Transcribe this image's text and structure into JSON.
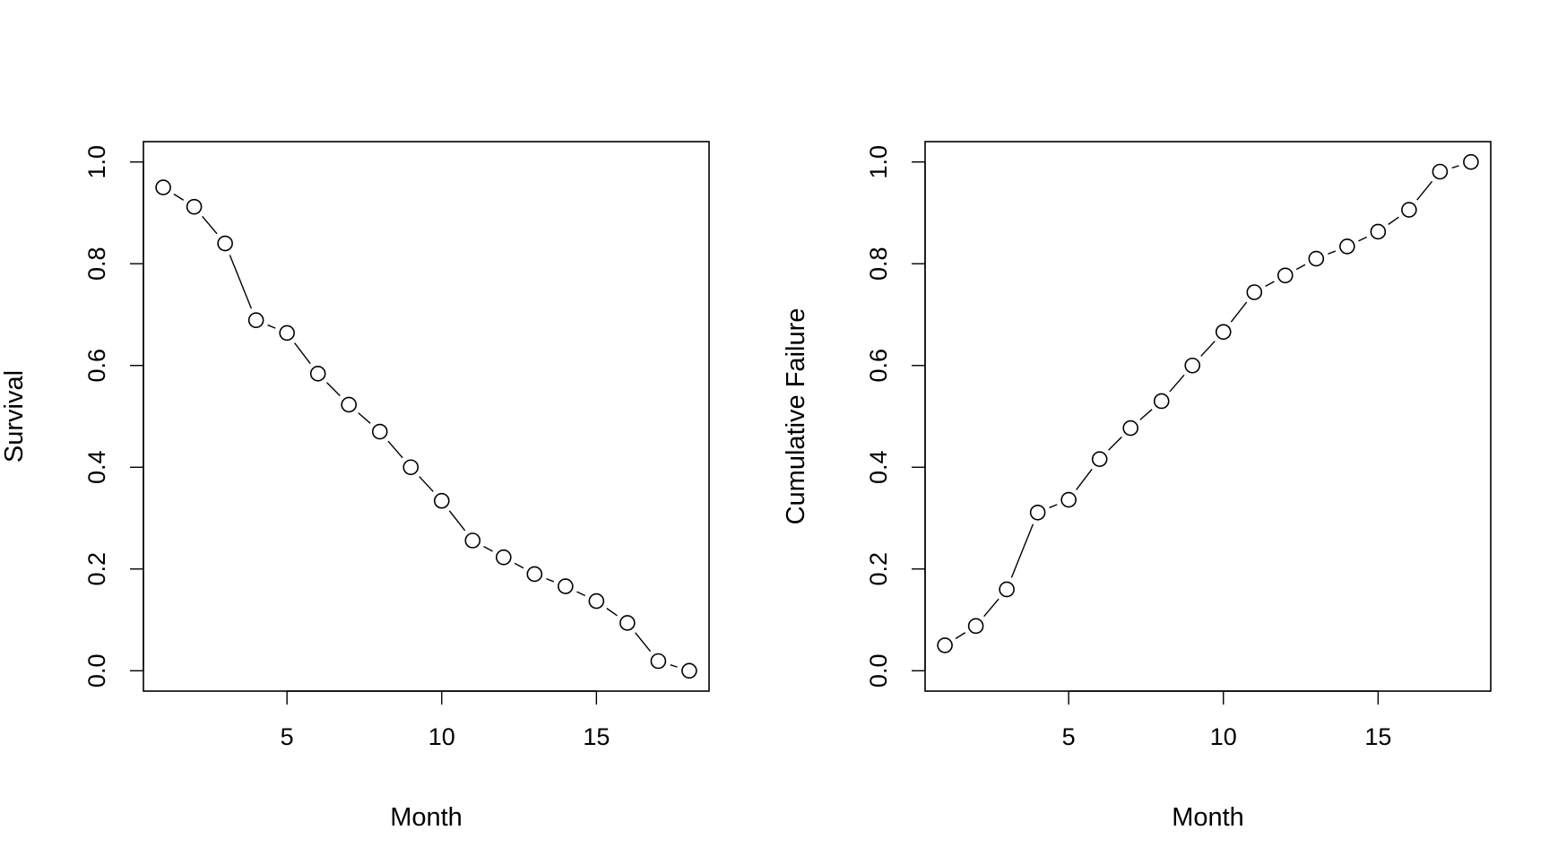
{
  "chart_data": [
    {
      "type": "line",
      "title": "",
      "xlabel": "Month",
      "ylabel": "Survival",
      "xlim": [
        0.36,
        18.64
      ],
      "ylim": [
        -0.04,
        1.04
      ],
      "xticks": [
        5,
        10,
        15
      ],
      "yticks": [
        0.0,
        0.2,
        0.4,
        0.6,
        0.8,
        1.0
      ],
      "ytick_labels": [
        "0.0",
        "0.2",
        "0.4",
        "0.6",
        "0.8",
        "1.0"
      ],
      "grid": false,
      "series": [
        {
          "x": [
            1,
            2,
            3,
            4,
            5,
            6,
            7,
            8,
            9,
            10,
            11,
            12,
            13,
            14,
            15,
            16,
            17,
            18
          ],
          "values": [
            0.95,
            0.912,
            0.84,
            0.689,
            0.664,
            0.584,
            0.523,
            0.47,
            0.4,
            0.334,
            0.256,
            0.223,
            0.19,
            0.166,
            0.137,
            0.094,
            0.019,
            0.0
          ]
        }
      ]
    },
    {
      "type": "line",
      "title": "",
      "xlabel": "Month",
      "ylabel": "Cumulative Failure",
      "xlim": [
        0.36,
        18.64
      ],
      "ylim": [
        -0.04,
        1.04
      ],
      "xticks": [
        5,
        10,
        15
      ],
      "yticks": [
        0.0,
        0.2,
        0.4,
        0.6,
        0.8,
        1.0
      ],
      "ytick_labels": [
        "0.0",
        "0.2",
        "0.4",
        "0.6",
        "0.8",
        "1.0"
      ],
      "grid": false,
      "series": [
        {
          "x": [
            1,
            2,
            3,
            4,
            5,
            6,
            7,
            8,
            9,
            10,
            11,
            12,
            13,
            14,
            15,
            16,
            17,
            18
          ],
          "values": [
            0.05,
            0.088,
            0.16,
            0.311,
            0.336,
            0.416,
            0.477,
            0.53,
            0.6,
            0.666,
            0.744,
            0.777,
            0.81,
            0.834,
            0.863,
            0.906,
            0.981,
            1.0
          ]
        }
      ]
    }
  ]
}
